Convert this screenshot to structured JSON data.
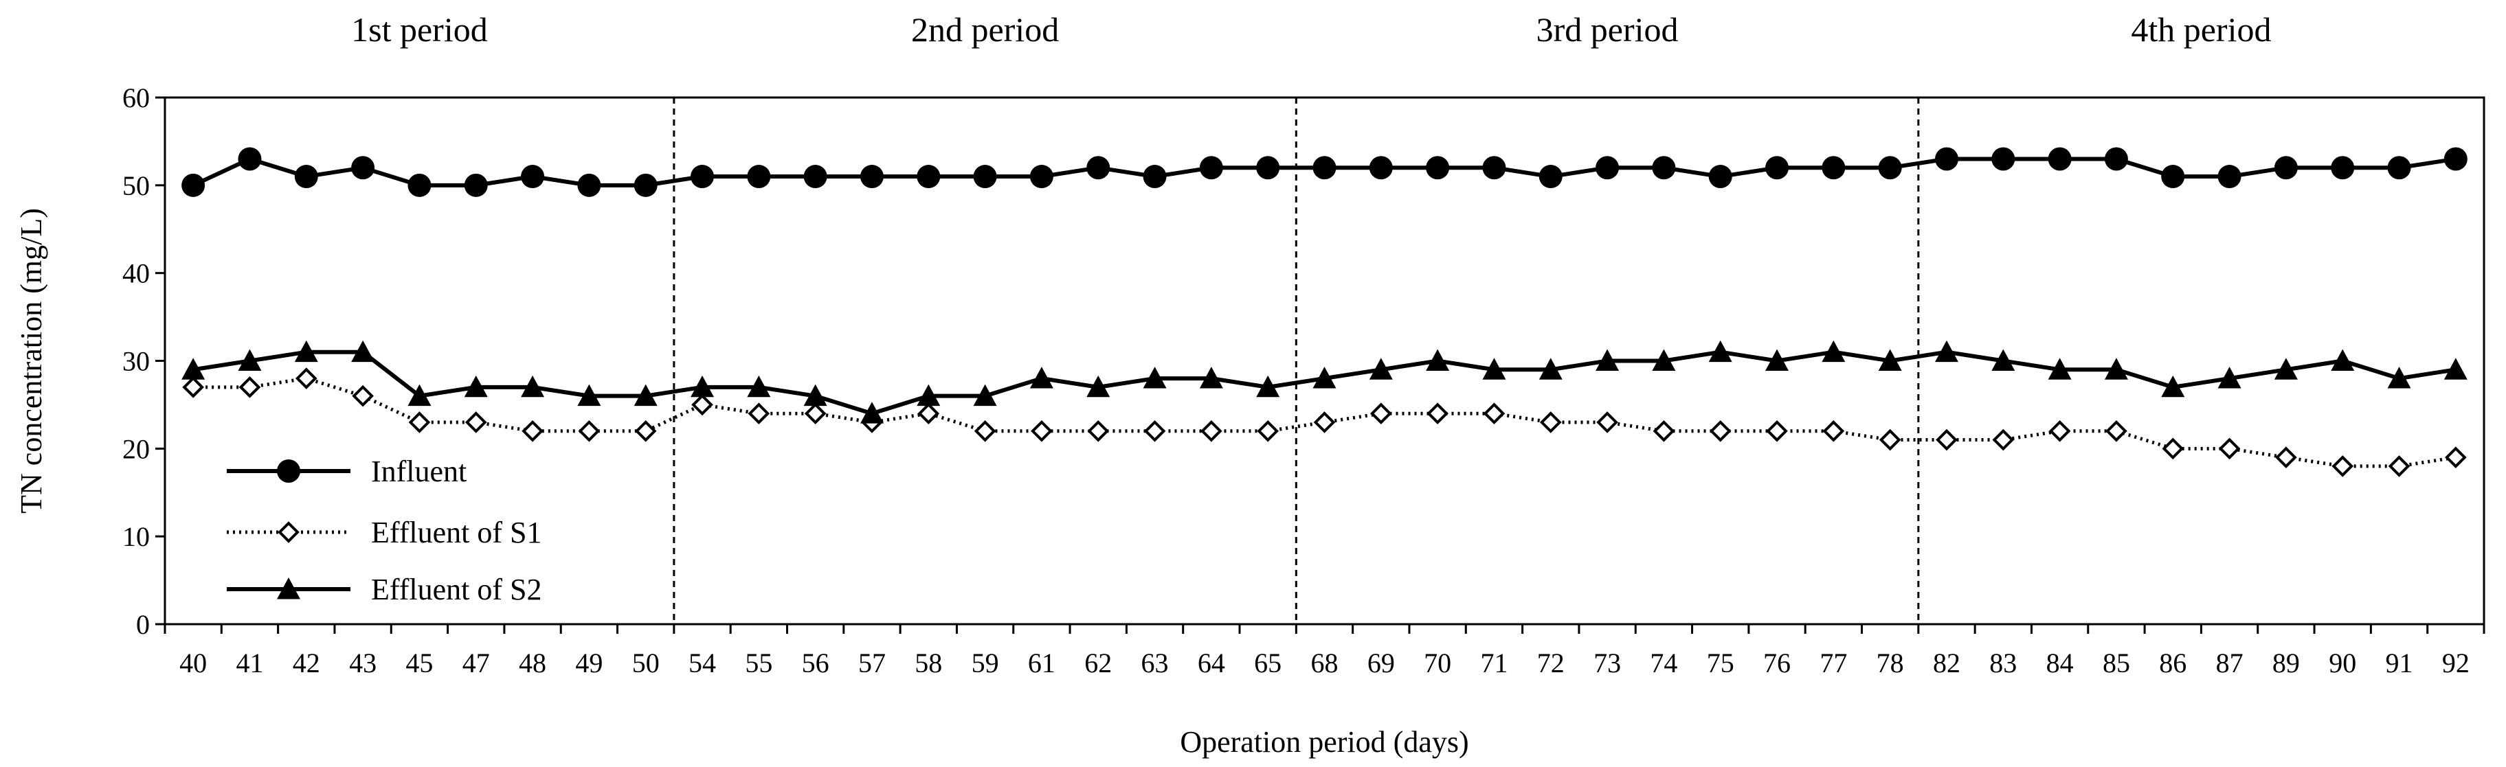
{
  "chart_data": {
    "type": "line",
    "xlabel": "Operation period (days)",
    "ylabel": "TN concentration (mg/L)",
    "ylim": [
      0,
      60
    ],
    "yticks": [
      0,
      10,
      20,
      30,
      40,
      50,
      60
    ],
    "categories": [
      "40",
      "41",
      "42",
      "43",
      "45",
      "47",
      "48",
      "49",
      "50",
      "54",
      "55",
      "56",
      "57",
      "58",
      "59",
      "61",
      "62",
      "63",
      "64",
      "65",
      "68",
      "69",
      "70",
      "71",
      "72",
      "73",
      "74",
      "75",
      "76",
      "77",
      "78",
      "82",
      "83",
      "84",
      "85",
      "86",
      "87",
      "89",
      "90",
      "91",
      "92"
    ],
    "periods": [
      {
        "label": "1st period",
        "start_day": "40",
        "end_day": "54"
      },
      {
        "label": "2nd period",
        "start_day": "54",
        "end_day": "68"
      },
      {
        "label": "3rd period",
        "start_day": "68",
        "end_day": "82"
      },
      {
        "label": "4th period",
        "start_day": "82",
        "end_day": "92"
      }
    ],
    "period_boundaries": [
      "54",
      "68",
      "82"
    ],
    "grid": false,
    "legend_position": "bottom-left",
    "series": [
      {
        "name": "Influent",
        "marker": "circle-filled",
        "line": "solid",
        "color": "#000000",
        "values": [
          50,
          53,
          51,
          52,
          50,
          50,
          51,
          50,
          50,
          51,
          51,
          51,
          51,
          51,
          51,
          51,
          52,
          51,
          52,
          52,
          52,
          52,
          52,
          52,
          51,
          52,
          52,
          51,
          52,
          52,
          52,
          53,
          53,
          53,
          53,
          51,
          51,
          52,
          52,
          52,
          53
        ]
      },
      {
        "name": "Effluent of S1",
        "marker": "diamond-open",
        "line": "dotted",
        "color": "#000000",
        "values": [
          27,
          27,
          28,
          26,
          23,
          23,
          22,
          22,
          22,
          25,
          24,
          24,
          23,
          24,
          22,
          22,
          22,
          22,
          22,
          22,
          23,
          24,
          24,
          24,
          23,
          23,
          22,
          22,
          22,
          22,
          21,
          21,
          21,
          22,
          22,
          20,
          20,
          19,
          18,
          18,
          19
        ]
      },
      {
        "name": "Effluent of S2",
        "marker": "triangle-filled",
        "line": "solid",
        "color": "#000000",
        "values": [
          29,
          30,
          31,
          31,
          26,
          27,
          27,
          26,
          26,
          27,
          27,
          26,
          24,
          26,
          26,
          28,
          27,
          28,
          28,
          27,
          28,
          29,
          30,
          29,
          29,
          30,
          30,
          31,
          30,
          31,
          30,
          31,
          30,
          29,
          29,
          27,
          28,
          29,
          30,
          28,
          29
        ]
      }
    ]
  }
}
